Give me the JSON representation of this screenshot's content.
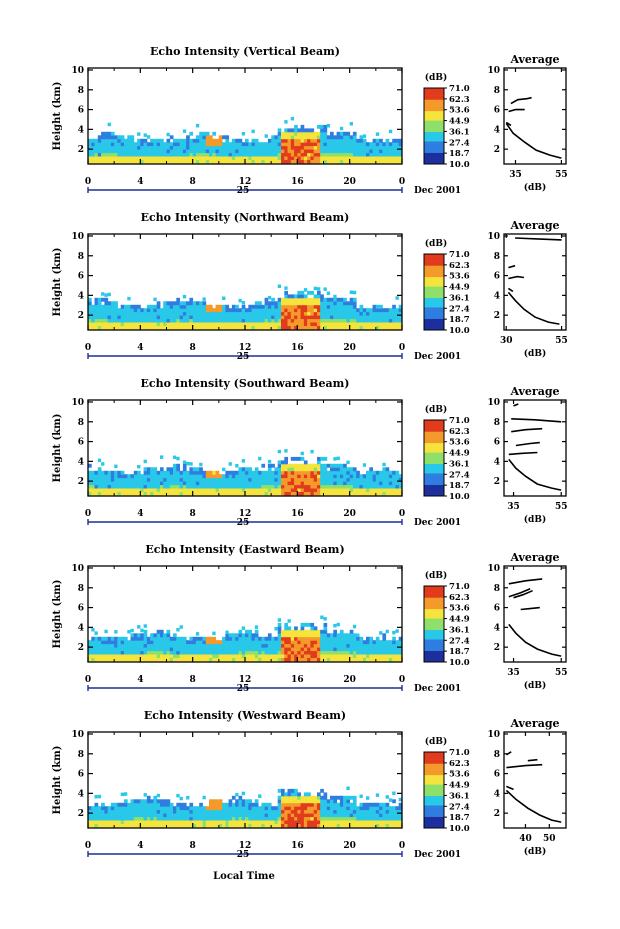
{
  "figure": {
    "xlabel": "Local Time",
    "date_label": "Dec 2001",
    "day_label": "25",
    "colorbar_unit": "(dB)",
    "colorbar_ticks": [
      "71.0",
      "62.3",
      "53.6",
      "44.9",
      "36.1",
      "27.4",
      "18.7",
      "10.0"
    ],
    "colors": {
      "low": "#1d2f9c",
      "mid_blue": "#2f7de0",
      "cyan": "#29c8e8",
      "green": "#8ee06a",
      "yellow": "#f5e43c",
      "orange": "#f39a2b",
      "red": "#e23a1c"
    }
  },
  "chart_data": [
    {
      "type": "heatmap",
      "title": "Echo Intensity (Vertical Beam)",
      "ylabel": "Height (km)",
      "x_ticks": [
        "0",
        "4",
        "8",
        "12",
        "16",
        "20",
        "0"
      ],
      "y_ticks": [
        "2",
        "4",
        "6",
        "8",
        "10"
      ],
      "xlim": [
        0,
        24
      ],
      "ylim": [
        0.5,
        10.2
      ],
      "zlim": [
        10.0,
        71.0
      ],
      "profile": {
        "title": "Average",
        "xlabel": "(dB)",
        "x_ticks": [
          "35",
          "55"
        ],
        "xlim": [
          30,
          57
        ],
        "y_ticks": [
          "2",
          "4",
          "6",
          "8",
          "10"
        ],
        "segments": [
          {
            "x": [
              31,
              34,
              39,
              44,
              50,
              55
            ],
            "y": [
              4.6,
              3.6,
              2.7,
              1.9,
              1.4,
              1.1
            ]
          },
          {
            "x": [
              33,
              36,
              40,
              42
            ],
            "y": [
              6.6,
              7.0,
              7.1,
              7.2
            ]
          },
          {
            "x": [
              32,
              35,
              39
            ],
            "y": [
              5.8,
              6.0,
              6.0
            ]
          },
          {
            "x": [
              31,
              33
            ],
            "y": [
              4.7,
              4.4
            ]
          }
        ]
      }
    },
    {
      "type": "heatmap",
      "title": "Echo Intensity (Northward Beam)",
      "ylabel": "Height (km)",
      "x_ticks": [
        "0",
        "4",
        "8",
        "12",
        "16",
        "20",
        "0"
      ],
      "y_ticks": [
        "2",
        "4",
        "6",
        "8",
        "10"
      ],
      "xlim": [
        0,
        24
      ],
      "ylim": [
        0.5,
        10.2
      ],
      "zlim": [
        10.0,
        71.0
      ],
      "profile": {
        "title": "Average",
        "xlabel": "(dB)",
        "x_ticks": [
          "30",
          "55"
        ],
        "xlim": [
          29,
          57
        ],
        "y_ticks": [
          "2",
          "4",
          "6",
          "8",
          "10"
        ],
        "segments": [
          {
            "x": [
              31,
              34,
              38,
              43,
              49,
              54
            ],
            "y": [
              4.3,
              3.5,
              2.6,
              1.8,
              1.3,
              1.1
            ]
          },
          {
            "x": [
              31,
              35,
              38
            ],
            "y": [
              5.7,
              5.9,
              5.8
            ]
          },
          {
            "x": [
              31,
              34
            ],
            "y": [
              6.8,
              7.0
            ]
          },
          {
            "x": [
              34,
              44,
              55
            ],
            "y": [
              9.8,
              9.7,
              9.6
            ]
          },
          {
            "x": [
              31,
              33
            ],
            "y": [
              4.7,
              4.4
            ]
          }
        ]
      }
    },
    {
      "type": "heatmap",
      "title": "Echo Intensity (Southward Beam)",
      "ylabel": "Height (km)",
      "x_ticks": [
        "0",
        "4",
        "8",
        "12",
        "16",
        "20",
        "0"
      ],
      "y_ticks": [
        "2",
        "4",
        "6",
        "8",
        "10"
      ],
      "xlim": [
        0,
        24
      ],
      "ylim": [
        0.5,
        10.2
      ],
      "zlim": [
        10.0,
        71.0
      ],
      "profile": {
        "title": "Average",
        "xlabel": "(dB)",
        "x_ticks": [
          "35",
          "55"
        ],
        "xlim": [
          31,
          57
        ],
        "y_ticks": [
          "2",
          "4",
          "6",
          "8",
          "10"
        ],
        "segments": [
          {
            "x": [
              33,
              36,
              40,
              45,
              51,
              55
            ],
            "y": [
              4.2,
              3.3,
              2.5,
              1.7,
              1.3,
              1.1
            ]
          },
          {
            "x": [
              33,
              38,
              45
            ],
            "y": [
              4.7,
              4.8,
              4.9
            ]
          },
          {
            "x": [
              36,
              42,
              46
            ],
            "y": [
              5.6,
              5.8,
              5.9
            ]
          },
          {
            "x": [
              34,
              40,
              47
            ],
            "y": [
              7.0,
              7.2,
              7.3
            ]
          },
          {
            "x": [
              34,
              44,
              55
            ],
            "y": [
              8.3,
              8.2,
              8.0
            ]
          },
          {
            "x": [
              35,
              37
            ],
            "y": [
              9.6,
              9.8
            ]
          }
        ]
      }
    },
    {
      "type": "heatmap",
      "title": "Echo Intensity (Eastward Beam)",
      "ylabel": "Height (km)",
      "x_ticks": [
        "0",
        "4",
        "8",
        "12",
        "16",
        "20",
        "0"
      ],
      "y_ticks": [
        "2",
        "4",
        "6",
        "8",
        "10"
      ],
      "xlim": [
        0,
        24
      ],
      "ylim": [
        0.5,
        10.2
      ],
      "zlim": [
        10.0,
        71.0
      ],
      "profile": {
        "title": "Average",
        "xlabel": "(dB)",
        "x_ticks": [
          "35",
          "55"
        ],
        "xlim": [
          31,
          57
        ],
        "y_ticks": [
          "2",
          "4",
          "6",
          "8",
          "10"
        ],
        "segments": [
          {
            "x": [
              33,
              36,
              40,
              45,
              51,
              55
            ],
            "y": [
              4.3,
              3.4,
              2.5,
              1.8,
              1.3,
              1.1
            ]
          },
          {
            "x": [
              38,
              42,
              46
            ],
            "y": [
              5.8,
              5.9,
              6.0
            ]
          },
          {
            "x": [
              33,
              38,
              42
            ],
            "y": [
              7.1,
              7.5,
              7.9
            ]
          },
          {
            "x": [
              33,
              40,
              47
            ],
            "y": [
              8.4,
              8.7,
              8.9
            ]
          },
          {
            "x": [
              35,
              39,
              43
            ],
            "y": [
              7.0,
              7.3,
              7.7
            ]
          }
        ]
      }
    },
    {
      "type": "heatmap",
      "title": "Echo Intensity (Westward Beam)",
      "ylabel": "Height (km)",
      "x_ticks": [
        "0",
        "4",
        "8",
        "12",
        "16",
        "20",
        "0"
      ],
      "y_ticks": [
        "2",
        "4",
        "6",
        "8",
        "10"
      ],
      "xlim": [
        0,
        24
      ],
      "ylim": [
        0.5,
        10.2
      ],
      "zlim": [
        10.0,
        71.0
      ],
      "profile": {
        "title": "Average",
        "xlabel": "(dB)",
        "x_ticks": [
          "40",
          "50"
        ],
        "xlim": [
          31,
          57
        ],
        "y_ticks": [
          "2",
          "4",
          "6",
          "8",
          "10"
        ],
        "segments": [
          {
            "x": [
              32,
              36,
              41,
              46,
              51,
              55
            ],
            "y": [
              4.3,
              3.4,
              2.5,
              1.8,
              1.3,
              1.1
            ]
          },
          {
            "x": [
              32,
              40,
              47
            ],
            "y": [
              6.6,
              6.8,
              6.9
            ]
          },
          {
            "x": [
              41,
              45
            ],
            "y": [
              7.3,
              7.4
            ]
          },
          {
            "x": [
              32,
              34
            ],
            "y": [
              7.9,
              8.2
            ]
          },
          {
            "x": [
              32,
              35
            ],
            "y": [
              4.7,
              4.4
            ]
          }
        ]
      }
    }
  ]
}
